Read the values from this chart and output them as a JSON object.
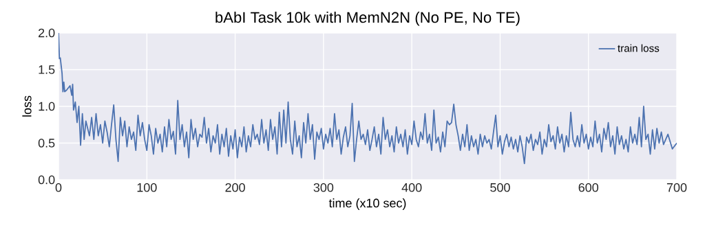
{
  "chart_data": {
    "type": "line",
    "title": "bAbI Task 10k with MemN2N (No PE, No TE)",
    "xlabel": "time (x10 sec)",
    "ylabel": "loss",
    "x": [
      0,
      1,
      2,
      4,
      5,
      6,
      7,
      9,
      11,
      13,
      15,
      16,
      17,
      19,
      21,
      23,
      25,
      27,
      29,
      31,
      35,
      37.5,
      40,
      42.5,
      45,
      47.5,
      50,
      52.5,
      55,
      57.5,
      60,
      62.5,
      65,
      67.5,
      70,
      72.5,
      75,
      77.5,
      80,
      82.5,
      85,
      87.5,
      90,
      92.5,
      95,
      97.5,
      100,
      102.5,
      105,
      107.5,
      110,
      112.5,
      115,
      117.5,
      120,
      122.5,
      125,
      127.5,
      130,
      132.5,
      135,
      137.5,
      140,
      142.5,
      145,
      147.5,
      150,
      152.5,
      155,
      157.5,
      160,
      162.5,
      165,
      167.5,
      170,
      172.5,
      175,
      177.5,
      180,
      182.5,
      185,
      187.5,
      190,
      192.5,
      195,
      197.5,
      200,
      202.5,
      205,
      207.5,
      210,
      212.5,
      215,
      217.5,
      220,
      222.5,
      225,
      227.5,
      230,
      232.5,
      235,
      237.5,
      240,
      242.5,
      245,
      247.5,
      250,
      252.5,
      255,
      257.5,
      260,
      262.5,
      265,
      267.5,
      270,
      272.5,
      275,
      277.5,
      280,
      282.5,
      285,
      287.5,
      290,
      292.5,
      295,
      297.5,
      300,
      302.5,
      305,
      307.5,
      310,
      312.5,
      315,
      317.5,
      320,
      322.5,
      325,
      327.5,
      330,
      332.5,
      335,
      337.5,
      340,
      342.5,
      345,
      347.5,
      350,
      352.5,
      355,
      357.5,
      360,
      362.5,
      365,
      367.5,
      370,
      372.5,
      375,
      377.5,
      380,
      382.5,
      385,
      387.5,
      390,
      392.5,
      395,
      397.5,
      400,
      402.5,
      405,
      407.5,
      410,
      412.5,
      415,
      417.5,
      420,
      422.5,
      425,
      427.5,
      430,
      432.5,
      435,
      437.5,
      440,
      442.5,
      445,
      447.5,
      450,
      452.5,
      455,
      457.5,
      460,
      462.5,
      465,
      467.5,
      470,
      472.5,
      475,
      477.5,
      480,
      482.5,
      485,
      487.5,
      490,
      492.5,
      495,
      497.5,
      500,
      502.5,
      505,
      507.5,
      510,
      512.5,
      515,
      517.5,
      520,
      522.5,
      525,
      527.5,
      530,
      532.5,
      535,
      537.5,
      540,
      542.5,
      545,
      547.5,
      550,
      552.5,
      555,
      557.5,
      560,
      562.5,
      565,
      567.5,
      570,
      572.5,
      575,
      577.5,
      580,
      582.5,
      585,
      587.5,
      590,
      592.5,
      595,
      597.5,
      600,
      602.5,
      605,
      607.5,
      610,
      612.5,
      615,
      617.5,
      620,
      622.5,
      625,
      627.5,
      630,
      632.5,
      635,
      637.5,
      640,
      642.5,
      645,
      647.5,
      650,
      652.5,
      655,
      657.5,
      660,
      662.5,
      665,
      667.5,
      670,
      672.5,
      675,
      677.5,
      680,
      682.5,
      685,
      690,
      695,
      700
    ],
    "series": [
      {
        "name": "train loss",
        "color": "#4c72b0",
        "values": [
          2.0,
          1.65,
          1.66,
          1.45,
          1.2,
          1.33,
          1.2,
          1.22,
          1.25,
          1.28,
          1.15,
          1.3,
          0.95,
          1.06,
          0.78,
          1.0,
          0.47,
          0.9,
          0.55,
          0.8,
          0.6,
          0.85,
          0.55,
          0.9,
          0.6,
          0.75,
          0.5,
          0.8,
          0.65,
          0.45,
          0.75,
          1.02,
          0.55,
          0.25,
          0.85,
          0.6,
          0.8,
          0.45,
          0.72,
          0.55,
          0.65,
          0.4,
          0.88,
          0.6,
          0.78,
          0.55,
          0.4,
          0.75,
          0.6,
          0.35,
          0.7,
          0.5,
          0.62,
          0.38,
          0.72,
          0.45,
          0.82,
          0.55,
          0.66,
          0.35,
          1.08,
          0.55,
          0.75,
          0.45,
          0.65,
          0.3,
          0.82,
          0.55,
          0.7,
          0.45,
          0.62,
          0.58,
          0.85,
          0.5,
          0.7,
          0.38,
          0.6,
          0.5,
          0.75,
          0.35,
          0.62,
          0.45,
          0.7,
          0.32,
          0.6,
          0.42,
          0.68,
          0.3,
          0.58,
          0.45,
          0.72,
          0.38,
          0.6,
          0.45,
          0.75,
          0.55,
          0.62,
          0.48,
          0.82,
          0.5,
          0.68,
          0.4,
          0.82,
          0.55,
          0.72,
          0.35,
          0.92,
          0.45,
          0.95,
          0.5,
          1.06,
          0.55,
          0.35,
          0.8,
          0.45,
          0.6,
          0.3,
          0.78,
          0.5,
          0.9,
          0.55,
          0.75,
          0.28,
          0.65,
          0.55,
          0.7,
          0.42,
          0.62,
          0.5,
          0.7,
          0.45,
          0.9,
          0.55,
          0.68,
          0.35,
          0.58,
          0.72,
          0.45,
          0.6,
          1.04,
          0.25,
          0.55,
          0.8,
          0.55,
          0.62,
          0.48,
          0.68,
          0.4,
          0.55,
          0.72,
          0.45,
          0.62,
          0.35,
          0.85,
          0.55,
          0.68,
          0.45,
          0.6,
          0.38,
          0.72,
          0.5,
          0.62,
          0.45,
          0.68,
          0.35,
          0.6,
          0.48,
          0.8,
          0.55,
          0.45,
          0.65,
          0.55,
          0.9,
          0.5,
          0.62,
          0.4,
          0.95,
          0.5,
          0.58,
          0.38,
          0.65,
          0.45,
          0.8,
          0.75,
          0.78,
          1.03,
          0.75,
          0.6,
          0.4,
          0.62,
          0.45,
          0.75,
          0.4,
          0.6,
          0.45,
          0.55,
          0.35,
          0.62,
          0.45,
          0.6,
          0.5,
          0.55,
          0.42,
          0.65,
          0.88,
          0.45,
          0.6,
          0.35,
          0.52,
          0.62,
          0.45,
          0.58,
          0.42,
          0.55,
          0.38,
          0.6,
          0.45,
          0.22,
          0.58,
          0.5,
          0.62,
          0.4,
          0.55,
          0.48,
          0.65,
          0.35,
          0.55,
          0.45,
          0.75,
          0.52,
          0.6,
          0.42,
          0.72,
          0.5,
          0.62,
          0.38,
          0.6,
          0.45,
          0.92,
          0.55,
          0.45,
          0.6,
          0.45,
          0.75,
          0.5,
          0.62,
          0.42,
          0.58,
          0.45,
          0.8,
          0.5,
          0.62,
          0.38,
          0.7,
          0.55,
          0.78,
          0.45,
          0.6,
          0.35,
          0.72,
          0.48,
          0.6,
          0.42,
          0.55,
          0.38,
          0.72,
          0.5,
          0.62,
          0.48,
          0.85,
          0.45,
          1.0,
          0.55,
          0.62,
          0.35,
          0.68,
          0.42,
          0.7,
          0.5,
          0.65,
          0.48,
          0.62,
          0.42,
          0.5
        ]
      }
    ],
    "xlim": [
      0,
      700
    ],
    "ylim": [
      0.0,
      2.0
    ],
    "xticks": [
      0,
      100,
      200,
      300,
      400,
      500,
      600,
      700
    ],
    "yticks": [
      {
        "value": 0.0,
        "label": "0.0"
      },
      {
        "value": 0.5,
        "label": "0.5"
      },
      {
        "value": 1.0,
        "label": "1.0"
      },
      {
        "value": 1.5,
        "label": "1.5"
      },
      {
        "value": 2.0,
        "label": "2.0"
      }
    ],
    "grid": true,
    "legend": "top right",
    "line_style": "solid",
    "marker": "none"
  }
}
